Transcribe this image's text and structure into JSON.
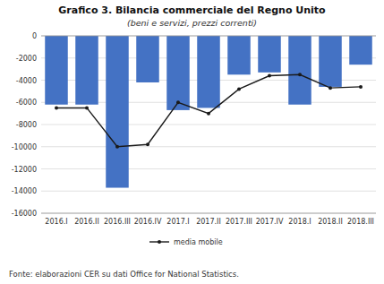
{
  "chart_data": {
    "type": "bar",
    "title": "Grafico 3. Bilancia commerciale del Regno Unito",
    "subtitle": "(beni e servizi, prezzi correnti)",
    "footnote": "Fonte: elaborazioni CER su dati Office for National Statistics.",
    "categories": [
      "2016.I",
      "2016.II",
      "2016.III",
      "2016.IV",
      "2017.I",
      "2017.II",
      "2017.III",
      "2017.IV",
      "2018.I",
      "2018.II",
      "2018.III"
    ],
    "series": [
      {
        "type": "bar",
        "color": "#4472C4",
        "values": [
          -6200,
          -6200,
          -13700,
          -4200,
          -6700,
          -6500,
          -3500,
          -3300,
          -6200,
          -4600,
          -2600
        ]
      },
      {
        "type": "line",
        "name": "media mobile",
        "color": "#1a1a1a",
        "marker": "circle",
        "values": [
          -6500,
          -6500,
          -10000,
          -9800,
          -6000,
          -7000,
          -4800,
          -3600,
          -3500,
          -4700,
          -4600
        ]
      }
    ],
    "ylim": [
      -16000,
      0
    ],
    "yticks": [
      0,
      -2000,
      -4000,
      -6000,
      -8000,
      -10000,
      -12000,
      -14000,
      -16000
    ],
    "grid": true,
    "legend": "bottom"
  }
}
